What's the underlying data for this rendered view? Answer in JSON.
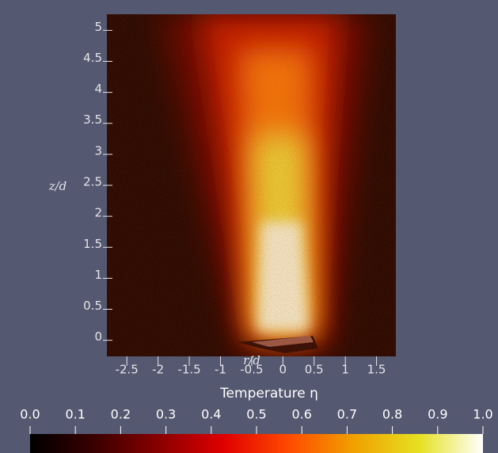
{
  "chart_data": {
    "type": "heatmap",
    "xlabel": "r/d",
    "ylabel": "z/d",
    "colorbar_label": "Temperature η",
    "xlim": [
      -2.82,
      1.81
    ],
    "ylim": [
      -0.26,
      5.26
    ],
    "xticks": [
      -2.5,
      -2,
      -1.5,
      -1,
      -0.5,
      0,
      0.5,
      1,
      1.5
    ],
    "yticks": [
      0,
      0.5,
      1,
      1.5,
      2,
      2.5,
      3,
      3.5,
      4,
      4.5,
      5
    ],
    "clim": [
      0,
      1
    ],
    "cticks": [
      {
        "value": 0,
        "label": "0.0"
      },
      {
        "value": 0.1,
        "label": "0.1"
      },
      {
        "value": 0.2,
        "label": "0.2"
      },
      {
        "value": 0.3,
        "label": "0.3"
      },
      {
        "value": 0.4,
        "label": "0.4"
      },
      {
        "value": 0.5,
        "label": "0.5"
      },
      {
        "value": 0.6,
        "label": "0.6"
      },
      {
        "value": 0.7,
        "label": "0.7"
      },
      {
        "value": 0.8,
        "label": "0.8"
      },
      {
        "value": 0.9,
        "label": "0.9"
      },
      {
        "value": 1,
        "label": "1.0"
      }
    ],
    "colormap": [
      "#000000",
      "#3a0000",
      "#8a0000",
      "#e00000",
      "#ff4a00",
      "#f0a000",
      "#e6e020",
      "#ffffff"
    ]
  }
}
